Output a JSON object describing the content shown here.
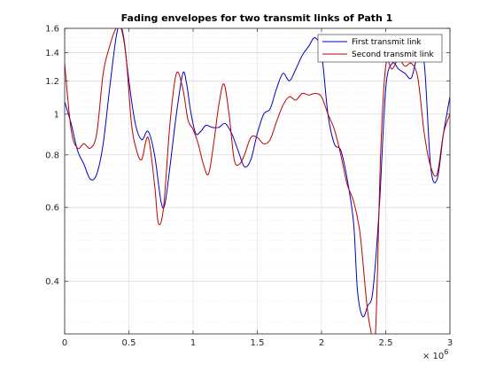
{
  "chart_data": {
    "type": "line",
    "title": "Fading envelopes for two transmit links of Path 1",
    "xlabel": "",
    "ylabel": "",
    "x_exponent_label": "× 10",
    "x_exponent_power": "6",
    "xlim": [
      0,
      3
    ],
    "ylim": [
      0.3,
      1.6
    ],
    "yscale": "log",
    "grid": true,
    "minor_grid": true,
    "legend_position": "top-right",
    "x_ticks": [
      0,
      0.5,
      1,
      1.5,
      2,
      2.5,
      3
    ],
    "x_tick_labels": [
      "0",
      "0.5",
      "1",
      "1.5",
      "2",
      "2.5",
      "3"
    ],
    "y_ticks": [
      0.4,
      0.6,
      0.8,
      1,
      1.2,
      1.4,
      1.6
    ],
    "y_tick_labels": [
      "0.4",
      "0.6",
      "0.8",
      "1",
      "1.2",
      "1.4",
      "1.6"
    ],
    "series": [
      {
        "name": "First transmit link",
        "color": "#0000bf",
        "x": [
          0,
          0.05,
          0.1,
          0.15,
          0.2,
          0.25,
          0.3,
          0.35,
          0.4,
          0.43,
          0.46,
          0.5,
          0.55,
          0.6,
          0.65,
          0.7,
          0.75,
          0.78,
          0.82,
          0.87,
          0.92,
          0.95,
          0.98,
          1.02,
          1.06,
          1.1,
          1.15,
          1.2,
          1.25,
          1.3,
          1.35,
          1.4,
          1.45,
          1.5,
          1.55,
          1.6,
          1.65,
          1.7,
          1.75,
          1.8,
          1.85,
          1.9,
          1.95,
          2.0,
          2.05,
          2.1,
          2.15,
          2.2,
          2.25,
          2.28,
          2.32,
          2.36,
          2.4,
          2.45,
          2.5,
          2.55,
          2.6,
          2.65,
          2.7,
          2.75,
          2.8,
          2.85,
          2.9,
          2.95,
          3.0
        ],
        "y": [
          1.07,
          0.95,
          0.82,
          0.76,
          0.7,
          0.72,
          0.85,
          1.15,
          1.52,
          1.62,
          1.52,
          1.2,
          0.95,
          0.87,
          0.91,
          0.8,
          0.62,
          0.61,
          0.75,
          1.0,
          1.25,
          1.18,
          1.02,
          0.9,
          0.91,
          0.94,
          0.93,
          0.93,
          0.95,
          0.9,
          0.82,
          0.75,
          0.78,
          0.9,
          1.0,
          1.03,
          1.15,
          1.25,
          1.2,
          1.28,
          1.38,
          1.45,
          1.52,
          1.4,
          1.0,
          0.85,
          0.82,
          0.7,
          0.55,
          0.38,
          0.33,
          0.35,
          0.38,
          0.6,
          1.15,
          1.32,
          1.28,
          1.25,
          1.22,
          1.38,
          1.32,
          0.75,
          0.7,
          0.9,
          1.1
        ]
      },
      {
        "name": "Second transmit link",
        "color": "#bf0000",
        "x": [
          0,
          0.05,
          0.1,
          0.15,
          0.2,
          0.25,
          0.3,
          0.35,
          0.4,
          0.44,
          0.48,
          0.52,
          0.56,
          0.6,
          0.65,
          0.7,
          0.73,
          0.77,
          0.82,
          0.87,
          0.92,
          0.96,
          1.0,
          1.04,
          1.08,
          1.12,
          1.16,
          1.2,
          1.24,
          1.28,
          1.32,
          1.36,
          1.4,
          1.45,
          1.5,
          1.55,
          1.6,
          1.65,
          1.7,
          1.75,
          1.8,
          1.85,
          1.9,
          1.95,
          2.0,
          2.05,
          2.1,
          2.15,
          2.2,
          2.25,
          2.3,
          2.35,
          2.38,
          2.42,
          2.46,
          2.5,
          2.55,
          2.6,
          2.65,
          2.7,
          2.75,
          2.8,
          2.85,
          2.9,
          2.95,
          3.0
        ],
        "y": [
          1.32,
          0.92,
          0.83,
          0.85,
          0.83,
          0.9,
          1.25,
          1.45,
          1.6,
          1.6,
          1.35,
          0.95,
          0.82,
          0.78,
          0.88,
          0.68,
          0.55,
          0.6,
          0.95,
          1.25,
          1.15,
          0.97,
          0.92,
          0.85,
          0.76,
          0.72,
          0.85,
          1.05,
          1.18,
          1.0,
          0.78,
          0.76,
          0.8,
          0.88,
          0.88,
          0.85,
          0.87,
          0.96,
          1.05,
          1.1,
          1.08,
          1.12,
          1.11,
          1.12,
          1.1,
          1.0,
          0.92,
          0.8,
          0.68,
          0.62,
          0.52,
          0.36,
          0.31,
          0.3,
          0.8,
          1.3,
          1.28,
          1.35,
          1.3,
          1.32,
          1.22,
          0.9,
          0.75,
          0.72,
          0.9,
          1.0
        ]
      }
    ]
  }
}
